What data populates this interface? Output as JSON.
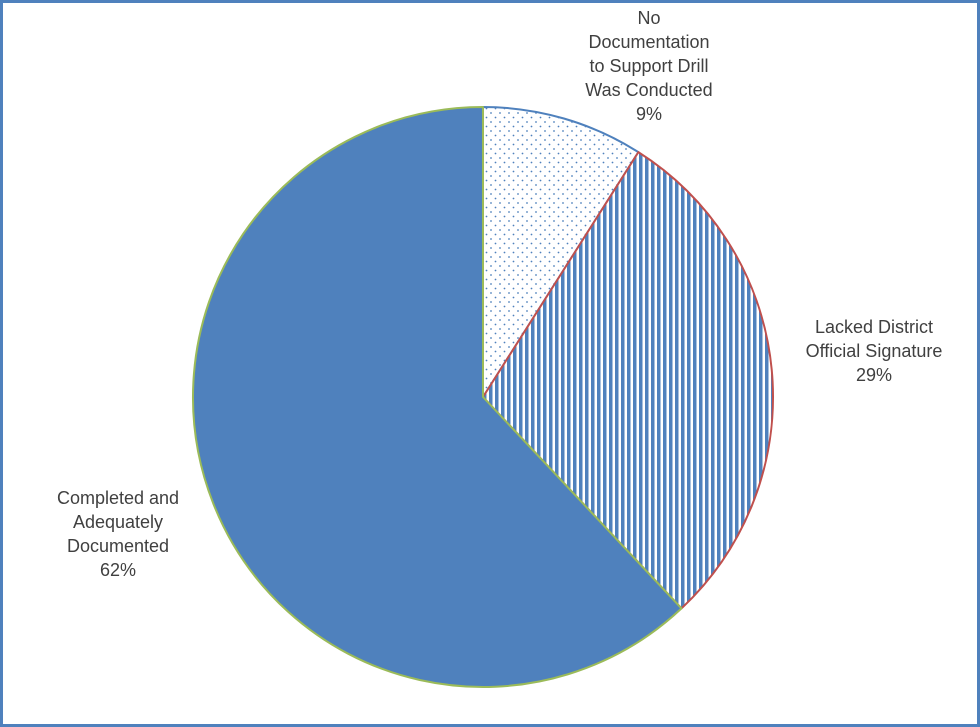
{
  "chart_data": {
    "type": "pie",
    "title": "",
    "start_angle_deg": 0,
    "direction": "clockwise",
    "legend": "none",
    "slices": [
      {
        "label_lines": [
          "No",
          "Documentation",
          "to Support Drill",
          "Was Conducted"
        ],
        "percent_label": "9%",
        "value": 9,
        "fill": "dots",
        "color": "#4f81bd",
        "border": "#4f81bd"
      },
      {
        "label_lines": [
          "Lacked District",
          "Official Signature"
        ],
        "percent_label": "29%",
        "value": 29,
        "fill": "vertical-stripes",
        "color": "#4f81bd",
        "border": "#c0504d"
      },
      {
        "label_lines": [
          "Completed and",
          "Adequately",
          "Documented"
        ],
        "percent_label": "62%",
        "value": 62,
        "fill": "solid",
        "color": "#4f81bd",
        "border": "#9bbb59"
      }
    ]
  },
  "colors": {
    "frame_border": "#4f81bd",
    "label_text": "#404040"
  }
}
